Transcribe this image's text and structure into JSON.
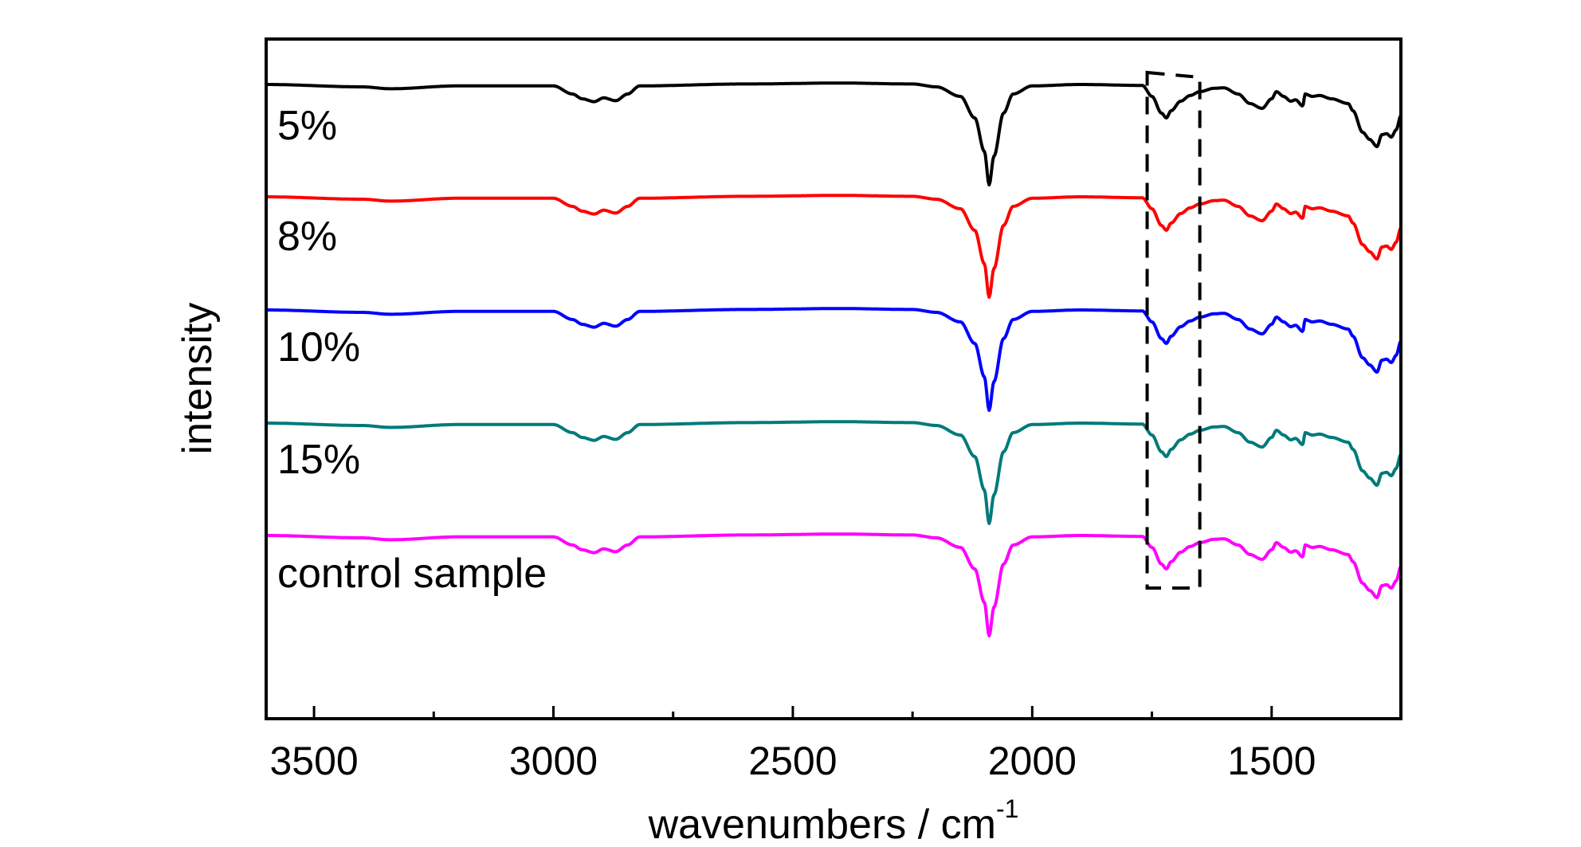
{
  "chart_data": {
    "type": "line",
    "xlabel": "wavenumbers / cm",
    "xlabel_superscript": "-1",
    "ylabel": "intensity",
    "xlim": [
      3600,
      1230
    ],
    "x_reversed": true,
    "xticks": [
      3500,
      3000,
      2500,
      2000,
      1500
    ],
    "xtick_labels": [
      "3500",
      "3000",
      "2500",
      "2000",
      "1500"
    ],
    "minor_xticks": [
      3250,
      2750,
      2250,
      1750
    ],
    "y_axis_ticks": false,
    "grid": false,
    "legend": "none",
    "annotations": [
      {
        "type": "dashed-box",
        "x_range": [
          1760,
          1650
        ],
        "description_text": ""
      }
    ],
    "feature_points": [
      {
        "x": 3600,
        "y": 0.0
      },
      {
        "x": 3400,
        "y": -0.5
      },
      {
        "x": 3340,
        "y": -0.9
      },
      {
        "x": 3200,
        "y": -0.3
      },
      {
        "x": 3000,
        "y": -0.3
      },
      {
        "x": 2960,
        "y": -2.0
      },
      {
        "x": 2940,
        "y": -3.0
      },
      {
        "x": 2915,
        "y": -3.6
      },
      {
        "x": 2895,
        "y": -2.8
      },
      {
        "x": 2870,
        "y": -3.4
      },
      {
        "x": 2845,
        "y": -2.0
      },
      {
        "x": 2820,
        "y": -0.3
      },
      {
        "x": 2600,
        "y": 0.1
      },
      {
        "x": 2400,
        "y": 0.3
      },
      {
        "x": 2250,
        "y": 0.1
      },
      {
        "x": 2200,
        "y": -0.5
      },
      {
        "x": 2150,
        "y": -2.5
      },
      {
        "x": 2120,
        "y": -7.0
      },
      {
        "x": 2100,
        "y": -14.0
      },
      {
        "x": 2090,
        "y": -21.0
      },
      {
        "x": 2080,
        "y": -15.0
      },
      {
        "x": 2060,
        "y": -6.0
      },
      {
        "x": 2040,
        "y": -2.0
      },
      {
        "x": 2000,
        "y": -0.3
      },
      {
        "x": 1900,
        "y": 0.0
      },
      {
        "x": 1770,
        "y": -0.2
      },
      {
        "x": 1750,
        "y": -2.5
      },
      {
        "x": 1730,
        "y": -6.0
      },
      {
        "x": 1720,
        "y": -7.0
      },
      {
        "x": 1710,
        "y": -5.5
      },
      {
        "x": 1690,
        "y": -3.5
      },
      {
        "x": 1670,
        "y": -2.3
      },
      {
        "x": 1650,
        "y": -1.5
      },
      {
        "x": 1620,
        "y": -0.8
      },
      {
        "x": 1600,
        "y": -0.7
      },
      {
        "x": 1570,
        "y": -2.0
      },
      {
        "x": 1545,
        "y": -4.0
      },
      {
        "x": 1520,
        "y": -5.0
      },
      {
        "x": 1500,
        "y": -3.0
      },
      {
        "x": 1490,
        "y": -1.5
      },
      {
        "x": 1475,
        "y": -2.5
      },
      {
        "x": 1460,
        "y": -3.5
      },
      {
        "x": 1450,
        "y": -3.2
      },
      {
        "x": 1435,
        "y": -4.5
      },
      {
        "x": 1430,
        "y": -2.0
      },
      {
        "x": 1415,
        "y": -2.5
      },
      {
        "x": 1400,
        "y": -2.3
      },
      {
        "x": 1375,
        "y": -3.0
      },
      {
        "x": 1340,
        "y": -4.0
      },
      {
        "x": 1330,
        "y": -5.5
      },
      {
        "x": 1310,
        "y": -10.0
      },
      {
        "x": 1295,
        "y": -11.5
      },
      {
        "x": 1280,
        "y": -13.0
      },
      {
        "x": 1270,
        "y": -10.5
      },
      {
        "x": 1260,
        "y": -10.3
      },
      {
        "x": 1250,
        "y": -11.0
      },
      {
        "x": 1240,
        "y": -9.5
      },
      {
        "x": 1230,
        "y": -6.5
      }
    ],
    "series": [
      {
        "name": "5%",
        "color": "#000000",
        "offset": 0,
        "scale": 1.0
      },
      {
        "name": "8%",
        "color": "#ff0000",
        "offset": -1,
        "scale": 1.0
      },
      {
        "name": "10%",
        "color": "#0000ff",
        "offset": -2,
        "scale": 1.0
      },
      {
        "name": "15%",
        "color": "#007a7a",
        "offset": -3,
        "scale": 1.0
      },
      {
        "name": "control sample",
        "color": "#ff00ff",
        "offset": -4,
        "scale": 1.0
      }
    ]
  }
}
